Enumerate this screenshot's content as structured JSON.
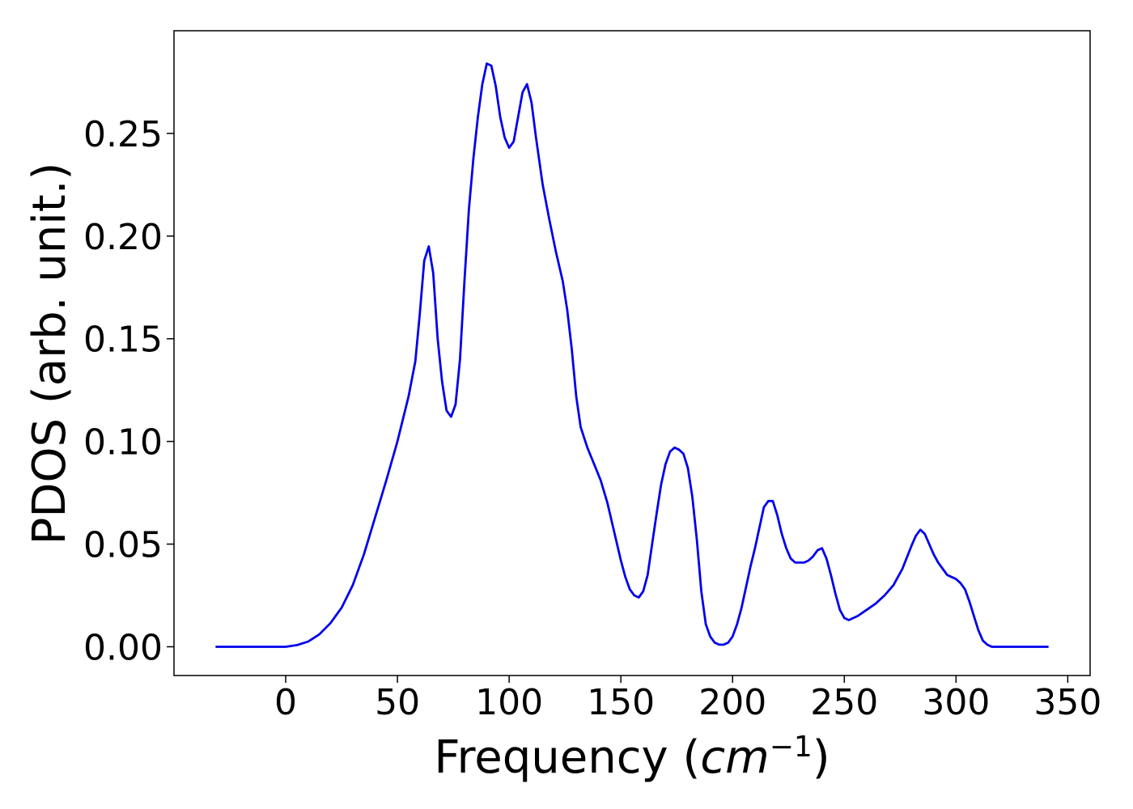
{
  "chart_data": {
    "type": "line",
    "title": "",
    "xlabel": "Frequency ",
    "xlabel_math": {
      "base": "cm",
      "superscript": "−1"
    },
    "ylabel": "PDOS (arb. unit.)",
    "xlim": [
      -50,
      360
    ],
    "ylim": [
      -0.014,
      0.3
    ],
    "xticks": [
      0,
      50,
      100,
      150,
      200,
      250,
      300,
      350
    ],
    "xtick_labels": [
      "0",
      "50",
      "100",
      "150",
      "200",
      "250",
      "300",
      "350"
    ],
    "yticks": [
      0.0,
      0.05,
      0.1,
      0.15,
      0.2,
      0.25
    ],
    "ytick_labels": [
      "0.00",
      "0.05",
      "0.10",
      "0.15",
      "0.20",
      "0.25"
    ],
    "grid": false,
    "legend": "none",
    "series": [
      {
        "color": "#0000ee",
        "x": [
          -31,
          -20,
          -10,
          -5,
          0,
          5,
          10,
          15,
          20,
          25,
          30,
          35,
          40,
          45,
          50,
          55,
          58,
          60,
          62,
          64,
          66,
          68,
          70,
          72,
          74,
          76,
          78,
          80,
          82,
          84,
          86,
          88,
          90,
          92,
          94,
          96,
          98,
          100,
          102,
          104,
          106,
          108,
          110,
          112,
          115,
          118,
          121,
          124,
          126,
          128,
          130,
          132,
          135,
          138,
          141,
          144,
          147,
          150,
          152,
          154,
          156,
          158,
          160,
          162,
          164,
          166,
          168,
          170,
          172,
          174,
          176,
          178,
          180,
          182,
          184,
          186,
          188,
          190,
          192,
          194,
          196,
          198,
          200,
          202,
          204,
          206,
          208,
          210,
          212,
          214,
          216,
          218,
          220,
          222,
          224,
          226,
          228,
          230,
          232,
          234,
          236,
          238,
          240,
          242,
          244,
          246,
          248,
          250,
          252,
          256,
          260,
          264,
          268,
          272,
          276,
          280,
          282,
          284,
          286,
          288,
          290,
          292,
          294,
          296,
          298,
          300,
          302,
          304,
          306,
          308,
          310,
          312,
          314,
          316,
          318,
          320,
          325,
          330,
          335,
          341
        ],
        "y": [
          0.0,
          0.0,
          0.0,
          0.0,
          0.0,
          0.0008,
          0.0025,
          0.006,
          0.0115,
          0.019,
          0.03,
          0.045,
          0.063,
          0.081,
          0.1,
          0.122,
          0.139,
          0.162,
          0.188,
          0.195,
          0.182,
          0.15,
          0.129,
          0.115,
          0.112,
          0.118,
          0.14,
          0.178,
          0.213,
          0.238,
          0.258,
          0.274,
          0.284,
          0.283,
          0.273,
          0.258,
          0.248,
          0.243,
          0.246,
          0.258,
          0.27,
          0.274,
          0.265,
          0.248,
          0.225,
          0.208,
          0.192,
          0.178,
          0.164,
          0.145,
          0.122,
          0.107,
          0.097,
          0.089,
          0.081,
          0.07,
          0.056,
          0.042,
          0.034,
          0.028,
          0.025,
          0.024,
          0.027,
          0.035,
          0.05,
          0.065,
          0.079,
          0.089,
          0.095,
          0.097,
          0.096,
          0.094,
          0.087,
          0.073,
          0.052,
          0.027,
          0.011,
          0.005,
          0.002,
          0.001,
          0.001,
          0.002,
          0.005,
          0.011,
          0.019,
          0.029,
          0.039,
          0.048,
          0.058,
          0.068,
          0.071,
          0.071,
          0.064,
          0.055,
          0.048,
          0.043,
          0.041,
          0.041,
          0.041,
          0.042,
          0.044,
          0.047,
          0.048,
          0.043,
          0.035,
          0.026,
          0.018,
          0.014,
          0.013,
          0.015,
          0.018,
          0.021,
          0.025,
          0.03,
          0.038,
          0.049,
          0.054,
          0.057,
          0.055,
          0.05,
          0.045,
          0.041,
          0.038,
          0.035,
          0.034,
          0.033,
          0.031,
          0.028,
          0.022,
          0.015,
          0.008,
          0.003,
          0.001,
          0.0,
          0.0,
          0.0,
          0.0,
          0.0,
          0.0,
          0.0
        ]
      }
    ]
  }
}
